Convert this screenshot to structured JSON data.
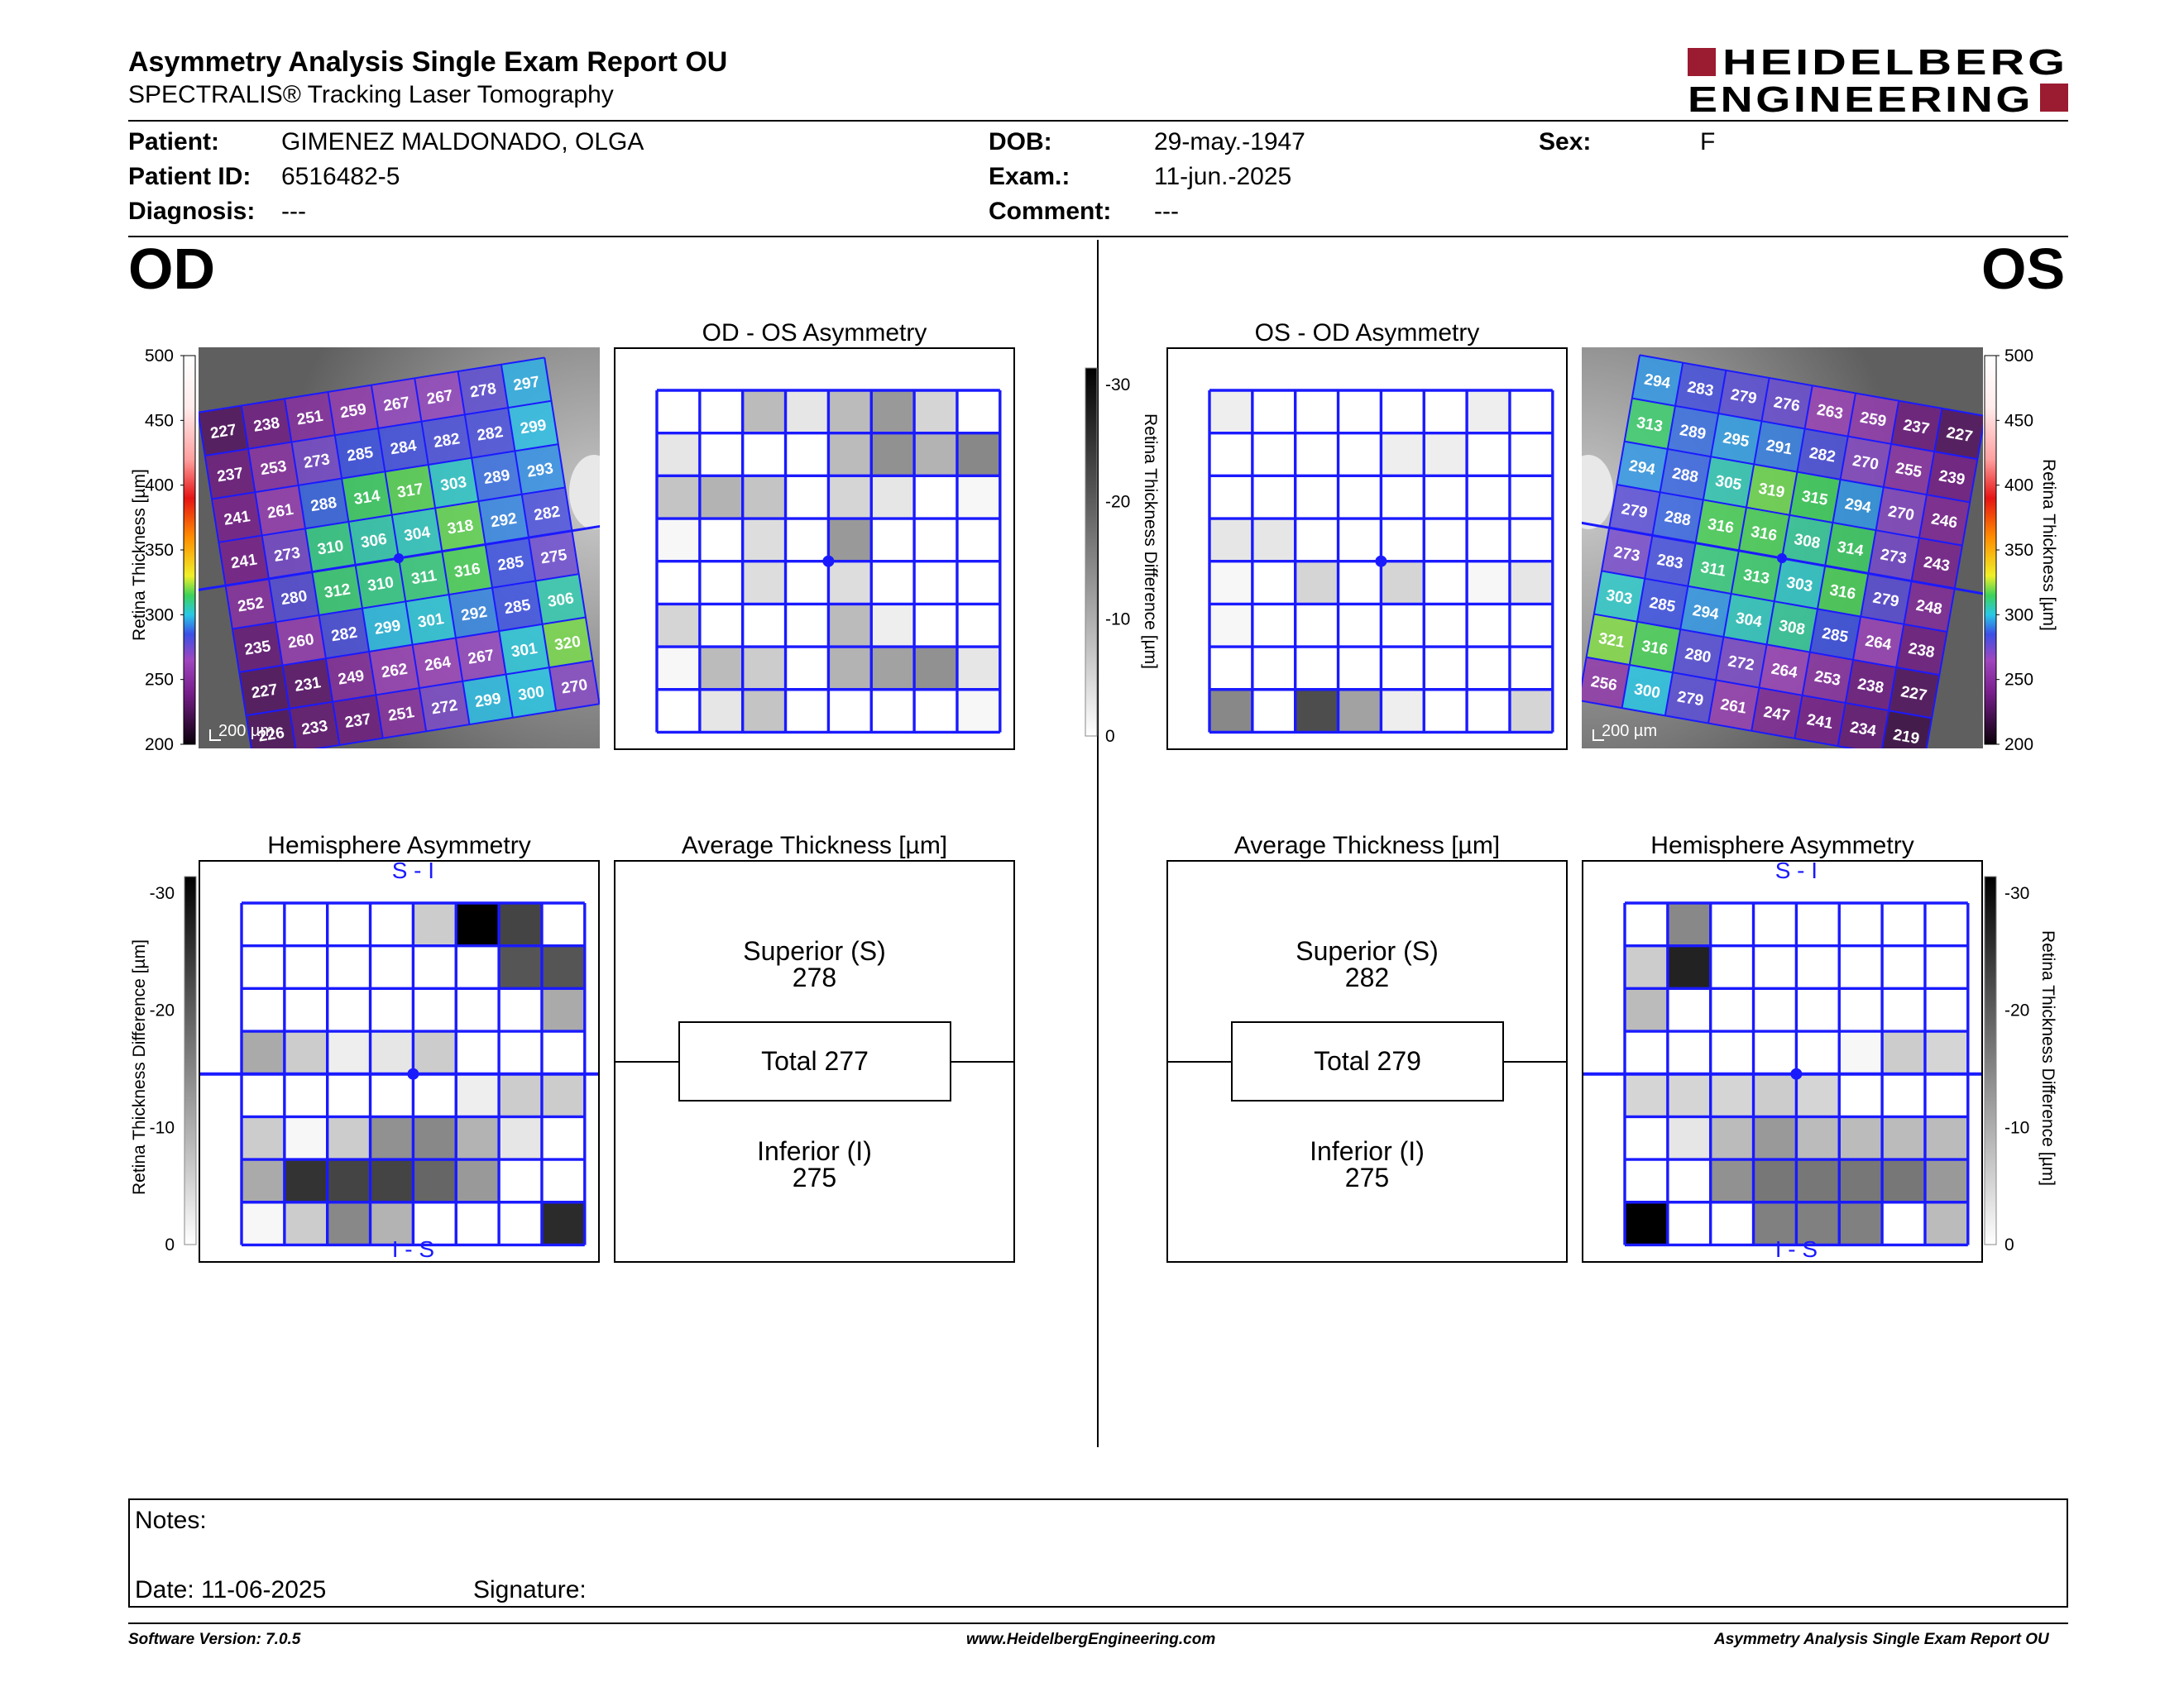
{
  "header": {
    "title": "Asymmetry Analysis Single Exam Report OU",
    "subtitle": "SPECTRALIS® Tracking Laser Tomography",
    "logo_line1": "HEIDELBERG",
    "logo_line2": "ENGINEERING",
    "logo_color": "#9b1b30"
  },
  "patient": {
    "patient_label": "Patient:",
    "patient_value": "GIMENEZ MALDONADO, OLGA",
    "id_label": "Patient ID:",
    "id_value": "6516482-5",
    "diagnosis_label": "Diagnosis:",
    "diagnosis_value": "---",
    "dob_label": "DOB:",
    "dob_value": "29-may.-1947",
    "exam_label": "Exam.:",
    "exam_value": "11-jun.-2025",
    "comment_label": "Comment:",
    "comment_value": "---",
    "sex_label": "Sex:",
    "sex_value": "F"
  },
  "od": {
    "eye_label": "OD",
    "asym_title": "OD - OS Asymmetry",
    "hemi_title": "Hemisphere Asymmetry",
    "hemi_top": "S - I",
    "hemi_bottom": "I - S",
    "avg_title": "Average Thickness [µm]",
    "superior_label": "Superior (S)",
    "superior_value": "278",
    "total_label": "Total 277",
    "inferior_label": "Inferior (I)",
    "inferior_value": "275",
    "scale_label": "200 µm",
    "thickness_grid": [
      [
        227,
        238,
        251,
        259,
        267,
        267,
        278,
        297
      ],
      [
        237,
        253,
        273,
        285,
        284,
        282,
        282,
        299
      ],
      [
        241,
        261,
        288,
        314,
        317,
        303,
        289,
        293
      ],
      [
        241,
        273,
        310,
        306,
        304,
        318,
        292,
        282
      ],
      [
        252,
        280,
        312,
        310,
        311,
        316,
        285,
        275
      ],
      [
        235,
        260,
        282,
        299,
        301,
        292,
        285,
        306
      ],
      [
        227,
        231,
        249,
        262,
        264,
        267,
        301,
        320
      ],
      [
        226,
        233,
        237,
        251,
        272,
        299,
        300,
        270
      ]
    ],
    "asym_grid": [
      [
        0,
        0,
        8,
        3,
        8,
        12,
        5,
        0
      ],
      [
        3,
        0,
        0,
        0,
        8,
        13,
        9,
        14
      ],
      [
        7,
        9,
        7,
        0,
        5,
        3,
        0,
        1
      ],
      [
        1,
        0,
        4,
        0,
        12,
        0,
        0,
        0
      ],
      [
        0,
        0,
        4,
        0,
        4,
        0,
        0,
        0
      ],
      [
        5,
        0,
        0,
        0,
        8,
        2,
        0,
        0
      ],
      [
        1,
        8,
        6,
        0,
        9,
        11,
        13,
        3
      ],
      [
        0,
        3,
        7,
        0,
        0,
        0,
        0,
        1
      ]
    ],
    "hemi_grid": [
      [
        0,
        0,
        0,
        0,
        6,
        30,
        22,
        0
      ],
      [
        0,
        0,
        0,
        0,
        0,
        0,
        20,
        20
      ],
      [
        0,
        0,
        0,
        0,
        0,
        0,
        0,
        10
      ],
      [
        10,
        6,
        2,
        3,
        6,
        0,
        0,
        0
      ],
      [
        0,
        0,
        0,
        0,
        0,
        2,
        6,
        6
      ],
      [
        6,
        1,
        6,
        13,
        14,
        9,
        3,
        0
      ],
      [
        10,
        24,
        22,
        22,
        18,
        12,
        0,
        0
      ],
      [
        1,
        6,
        14,
        9,
        0,
        0,
        0,
        25
      ]
    ]
  },
  "os": {
    "eye_label": "OS",
    "asym_title": "OS - OD Asymmetry",
    "hemi_title": "Hemisphere Asymmetry",
    "hemi_top": "S - I",
    "hemi_bottom": "I - S",
    "avg_title": "Average Thickness [µm]",
    "superior_label": "Superior (S)",
    "superior_value": "282",
    "total_label": "Total 279",
    "inferior_label": "Inferior (I)",
    "inferior_value": "275",
    "scale_label": "200 µm",
    "thickness_grid": [
      [
        294,
        283,
        279,
        276,
        263,
        259,
        237,
        227
      ],
      [
        313,
        289,
        295,
        291,
        282,
        270,
        255,
        239
      ],
      [
        294,
        288,
        305,
        319,
        315,
        294,
        270,
        246
      ],
      [
        279,
        288,
        316,
        316,
        308,
        314,
        273,
        243
      ],
      [
        273,
        283,
        311,
        313,
        303,
        316,
        279,
        248
      ],
      [
        303,
        285,
        294,
        304,
        308,
        285,
        264,
        238
      ],
      [
        321,
        316,
        280,
        272,
        264,
        253,
        238,
        227
      ],
      [
        256,
        300,
        279,
        261,
        247,
        241,
        234,
        219
      ]
    ],
    "asym_grid": [
      [
        2,
        0,
        0,
        0,
        0,
        0,
        2,
        0
      ],
      [
        0,
        0,
        0,
        0,
        2,
        2,
        0,
        0
      ],
      [
        0,
        0,
        0,
        0,
        0,
        0,
        0,
        0
      ],
      [
        3,
        3,
        0,
        0,
        0,
        0,
        0,
        0
      ],
      [
        1,
        0,
        5,
        0,
        5,
        0,
        1,
        3
      ],
      [
        1,
        0,
        0,
        0,
        0,
        0,
        0,
        0
      ],
      [
        0,
        0,
        0,
        0,
        0,
        0,
        0,
        0
      ],
      [
        14,
        0,
        21,
        11,
        2,
        0,
        0,
        5
      ]
    ],
    "hemi_grid": [
      [
        0,
        14,
        0,
        0,
        0,
        0,
        0,
        0
      ],
      [
        6,
        26,
        0,
        0,
        0,
        0,
        0,
        0
      ],
      [
        8,
        0,
        0,
        0,
        0,
        0,
        0,
        0
      ],
      [
        0,
        0,
        0,
        0,
        0,
        1,
        6,
        5
      ],
      [
        5,
        5,
        5,
        6,
        5,
        0,
        0,
        0
      ],
      [
        0,
        3,
        8,
        12,
        8,
        8,
        8,
        8
      ],
      [
        0,
        0,
        13,
        16,
        16,
        16,
        16,
        12
      ],
      [
        30,
        0,
        0,
        15,
        15,
        15,
        0,
        8
      ]
    ]
  },
  "scales": {
    "thickness_label": "Retina Thickness [µm]",
    "thickness_ticks": [
      "500",
      "450",
      "400",
      "350",
      "300",
      "250",
      "200"
    ],
    "diff_label": "Retina Thickness Difference [µm]",
    "diff_ticks": [
      "-30",
      "-20",
      "-10",
      "0"
    ]
  },
  "notes": {
    "notes_label": "Notes:",
    "date_label": "Date: 11-06-2025",
    "signature_label": "Signature:"
  },
  "footer": {
    "version": "Software Version: 7.0.5",
    "website": "www.HeidelbergEngineering.com",
    "report": "Asymmetry Analysis Single Exam Report OU"
  }
}
